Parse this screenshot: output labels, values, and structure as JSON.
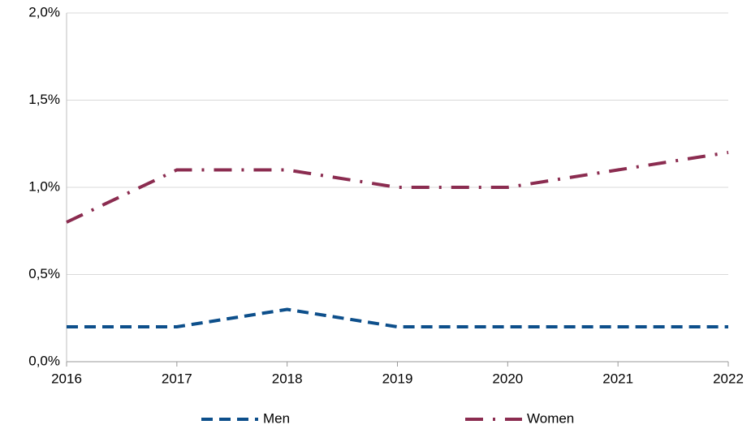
{
  "chart_data": {
    "type": "line",
    "x": [
      2016,
      2017,
      2018,
      2019,
      2020,
      2021,
      2022
    ],
    "xlim": [
      2016,
      2022
    ],
    "xticks": [
      2016,
      2017,
      2018,
      2019,
      2020,
      2021,
      2022
    ],
    "ylim": [
      0,
      2
    ],
    "yticks": [
      {
        "value": 0,
        "label": "0,0%"
      },
      {
        "value": 0.5,
        "label": "0,5%"
      },
      {
        "value": 1,
        "label": "1,0%"
      },
      {
        "value": 1.5,
        "label": "1,5%"
      },
      {
        "value": 2,
        "label": "2,0%"
      }
    ],
    "grid": true,
    "legend": "bottom",
    "series": [
      {
        "name": "Men",
        "color": "#0d4f8b",
        "dash": "dashed",
        "values": [
          0.2,
          0.2,
          0.3,
          0.2,
          0.2,
          0.2,
          0.2
        ]
      },
      {
        "name": "Women",
        "color": "#8b2c50",
        "dash": "dashdot",
        "values": [
          0.8,
          1.1,
          1.1,
          1.0,
          1.0,
          1.1,
          1.2
        ]
      }
    ]
  }
}
